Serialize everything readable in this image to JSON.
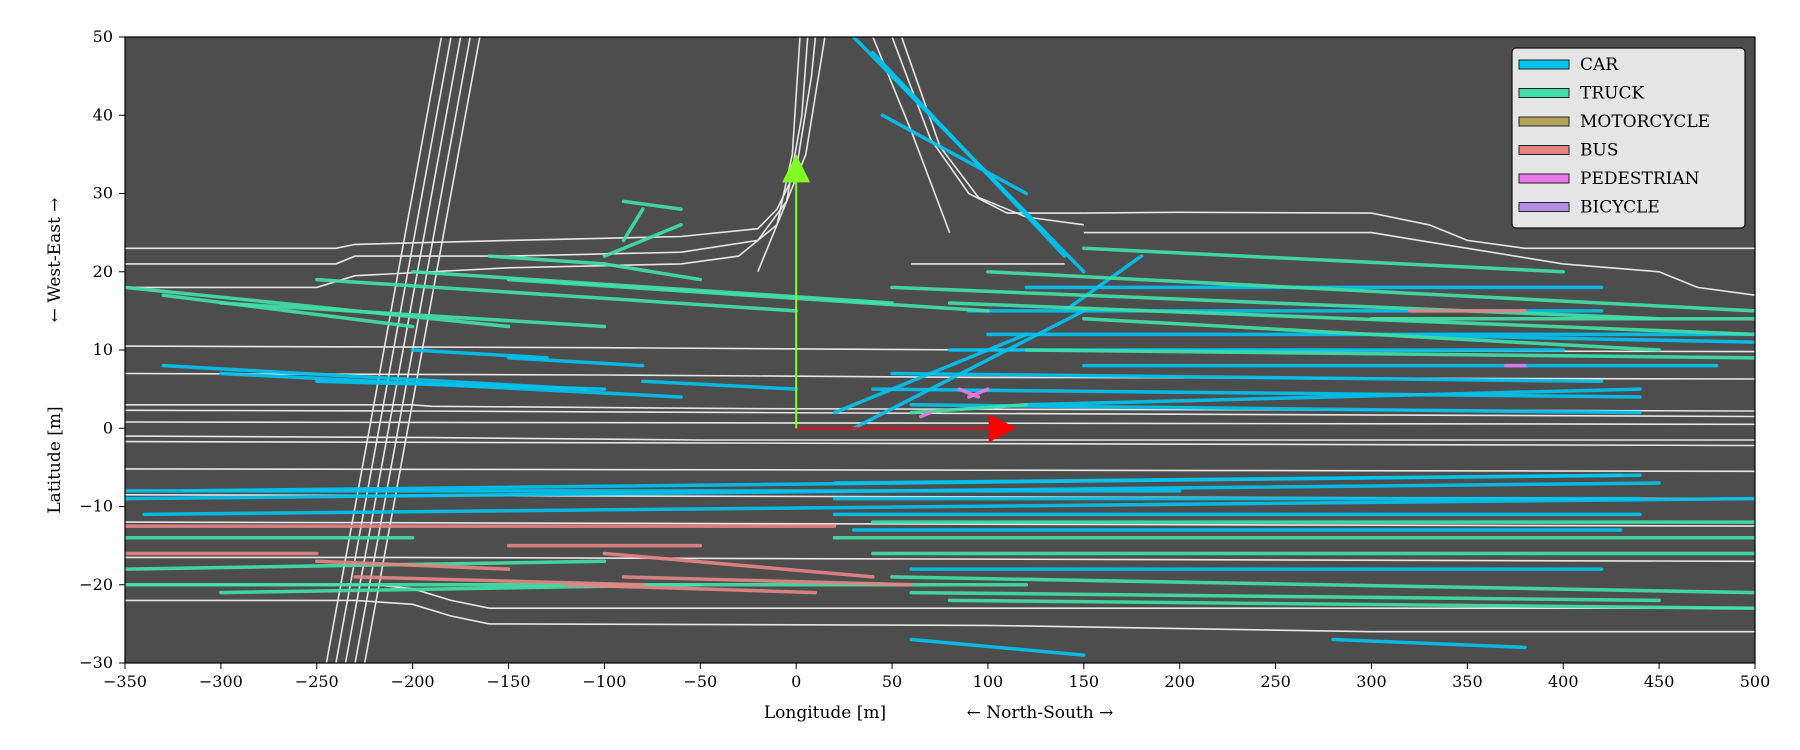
{
  "chart_data": {
    "type": "scatter",
    "title": "",
    "xlabel": "Longitude [m]",
    "xlabel2": "← North-South →",
    "ylabel": "Latitude [m]",
    "ylabel2": "← West-East →",
    "xlim": [
      -350,
      500
    ],
    "ylim": [
      -30,
      50
    ],
    "xticks": [
      -350,
      -300,
      -250,
      -200,
      -150,
      -100,
      -50,
      0,
      50,
      100,
      150,
      200,
      250,
      300,
      350,
      400,
      450,
      500
    ],
    "xtick_labels": [
      "−350",
      "−300",
      "−250",
      "−200",
      "−150",
      "−100",
      "−50",
      "0",
      "50",
      "100",
      "150",
      "200",
      "250",
      "300",
      "350",
      "400",
      "450",
      "500"
    ],
    "yticks": [
      -30,
      -20,
      -10,
      0,
      10,
      20,
      30,
      40,
      50
    ],
    "ytick_labels": [
      "−30",
      "−20",
      "−10",
      "0",
      "10",
      "20",
      "30",
      "40",
      "50"
    ],
    "grid": false,
    "background": "#4d4d4d",
    "legend_position": "top-right",
    "road_color": "#e6e6e6",
    "series": [
      {
        "name": "CAR",
        "color": "#00c3f0",
        "segments": [
          [
            [
              -330,
              8
            ],
            [
              -110,
              5
            ]
          ],
          [
            [
              -300,
              7
            ],
            [
              -60,
              4
            ]
          ],
          [
            [
              -250,
              6
            ],
            [
              -100,
              5
            ]
          ],
          [
            [
              -350,
              -9
            ],
            [
              450,
              -7
            ]
          ],
          [
            [
              -320,
              -8
            ],
            [
              430,
              -6
            ]
          ],
          [
            [
              -340,
              -11
            ],
            [
              500,
              -9
            ]
          ],
          [
            [
              20,
              -7
            ],
            [
              440,
              -6
            ]
          ],
          [
            [
              20,
              -9
            ],
            [
              440,
              -9
            ]
          ],
          [
            [
              20,
              -11
            ],
            [
              440,
              -11
            ]
          ],
          [
            [
              30,
              -13
            ],
            [
              430,
              -13
            ]
          ],
          [
            [
              60,
              -18
            ],
            [
              420,
              -18
            ]
          ],
          [
            [
              40,
              5
            ],
            [
              440,
              4
            ]
          ],
          [
            [
              60,
              3
            ],
            [
              440,
              2
            ]
          ],
          [
            [
              50,
              7
            ],
            [
              420,
              6
            ]
          ],
          [
            [
              80,
              10
            ],
            [
              400,
              10
            ]
          ],
          [
            [
              100,
              12
            ],
            [
              500,
              12
            ]
          ],
          [
            [
              90,
              15
            ],
            [
              420,
              15
            ]
          ],
          [
            [
              120,
              18
            ],
            [
              420,
              18
            ]
          ],
          [
            [
              20,
              2
            ],
            [
              120,
              12
            ]
          ],
          [
            [
              140,
              15
            ],
            [
              180,
              22
            ]
          ],
          [
            [
              30,
              0
            ],
            [
              150,
              15
            ]
          ],
          [
            [
              30,
              50
            ],
            [
              130,
              25
            ]
          ],
          [
            [
              40,
              48
            ],
            [
              140,
              22
            ]
          ],
          [
            [
              50,
              45
            ],
            [
              150,
              20
            ]
          ],
          [
            [
              45,
              40
            ],
            [
              120,
              30
            ]
          ],
          [
            [
              -150,
              9
            ],
            [
              -80,
              8
            ]
          ],
          [
            [
              -200,
              10
            ],
            [
              -130,
              9
            ]
          ],
          [
            [
              -80,
              6
            ],
            [
              0,
              5
            ]
          ],
          [
            [
              60,
              -27
            ],
            [
              150,
              -29
            ]
          ],
          [
            [
              280,
              -27
            ],
            [
              380,
              -28
            ]
          ],
          [
            [
              -350,
              -8
            ],
            [
              200,
              -8
            ]
          ],
          [
            [
              120,
              3
            ],
            [
              440,
              5
            ]
          ],
          [
            [
              150,
              8
            ],
            [
              480,
              8
            ]
          ],
          [
            [
              300,
              12
            ],
            [
              500,
              11
            ]
          ]
        ]
      },
      {
        "name": "TRUCK",
        "color": "#40e0a8",
        "segments": [
          [
            [
              -350,
              18
            ],
            [
              -150,
              13
            ]
          ],
          [
            [
              -330,
              17
            ],
            [
              -200,
              13
            ]
          ],
          [
            [
              -300,
              16
            ],
            [
              -100,
              13
            ]
          ],
          [
            [
              -250,
              19
            ],
            [
              0,
              15
            ]
          ],
          [
            [
              -200,
              20
            ],
            [
              50,
              16
            ]
          ],
          [
            [
              -150,
              19
            ],
            [
              100,
              15
            ]
          ],
          [
            [
              -100,
              21
            ],
            [
              -50,
              19
            ]
          ],
          [
            [
              -160,
              22
            ],
            [
              -100,
              21
            ]
          ],
          [
            [
              -90,
              24
            ],
            [
              -80,
              28
            ]
          ],
          [
            [
              -100,
              22
            ],
            [
              -60,
              26
            ]
          ],
          [
            [
              -90,
              29
            ],
            [
              -60,
              28
            ]
          ],
          [
            [
              50,
              18
            ],
            [
              450,
              14
            ]
          ],
          [
            [
              100,
              20
            ],
            [
              500,
              15
            ]
          ],
          [
            [
              150,
              23
            ],
            [
              400,
              20
            ]
          ],
          [
            [
              80,
              16
            ],
            [
              500,
              12
            ]
          ],
          [
            [
              150,
              14
            ],
            [
              450,
              10
            ]
          ],
          [
            [
              120,
              10
            ],
            [
              500,
              9
            ]
          ],
          [
            [
              -350,
              -20
            ],
            [
              120,
              -20
            ]
          ],
          [
            [
              -300,
              -21
            ],
            [
              -50,
              -20
            ]
          ],
          [
            [
              -350,
              -14
            ],
            [
              -200,
              -14
            ]
          ],
          [
            [
              -350,
              -18
            ],
            [
              -100,
              -17
            ]
          ],
          [
            [
              20,
              -14
            ],
            [
              500,
              -14
            ]
          ],
          [
            [
              40,
              -16
            ],
            [
              500,
              -16
            ]
          ],
          [
            [
              50,
              -19
            ],
            [
              500,
              -21
            ]
          ],
          [
            [
              60,
              -21
            ],
            [
              450,
              -22
            ]
          ],
          [
            [
              40,
              -12
            ],
            [
              500,
              -12
            ]
          ],
          [
            [
              80,
              -22
            ],
            [
              500,
              -23
            ]
          ],
          [
            [
              60,
              2
            ],
            [
              120,
              3
            ]
          ],
          [
            [
              300,
              14
            ],
            [
              500,
              14
            ]
          ]
        ]
      },
      {
        "name": "MOTORCYCLE",
        "color": "#b5a35a",
        "segments": []
      },
      {
        "name": "BUS",
        "color": "#e38585",
        "segments": [
          [
            [
              -350,
              -12.5
            ],
            [
              20,
              -12.5
            ]
          ],
          [
            [
              -250,
              -17
            ],
            [
              -150,
              -18
            ]
          ],
          [
            [
              -150,
              -15
            ],
            [
              -50,
              -15
            ]
          ],
          [
            [
              -230,
              -19
            ],
            [
              -80,
              -20
            ]
          ],
          [
            [
              -100,
              -16
            ],
            [
              40,
              -19
            ]
          ],
          [
            [
              -350,
              -16
            ],
            [
              -250,
              -16
            ]
          ],
          [
            [
              -120,
              -20
            ],
            [
              10,
              -21
            ]
          ],
          [
            [
              -90,
              -19
            ],
            [
              60,
              -20
            ]
          ],
          [
            [
              320,
              15
            ],
            [
              380,
              15
            ]
          ]
        ]
      },
      {
        "name": "PEDESTRIAN",
        "color": "#e879e8",
        "segments": [
          [
            [
              65,
              1.5
            ],
            [
              70,
              2
            ]
          ],
          [
            [
              90,
              4
            ],
            [
              100,
              5
            ]
          ],
          [
            [
              85,
              5
            ],
            [
              95,
              4
            ]
          ],
          [
            [
              370,
              8
            ],
            [
              380,
              8
            ]
          ]
        ]
      },
      {
        "name": "BICYCLE",
        "color": "#b48ee8",
        "segments": []
      }
    ],
    "annotations": [
      {
        "name": "x-direction-arrow",
        "color": "#ff0000",
        "from": [
          0,
          0
        ],
        "to": [
          115,
          0
        ]
      },
      {
        "name": "y-direction-arrow",
        "color": "#80ff20",
        "from": [
          0,
          0
        ],
        "to": [
          0,
          35
        ]
      }
    ]
  }
}
